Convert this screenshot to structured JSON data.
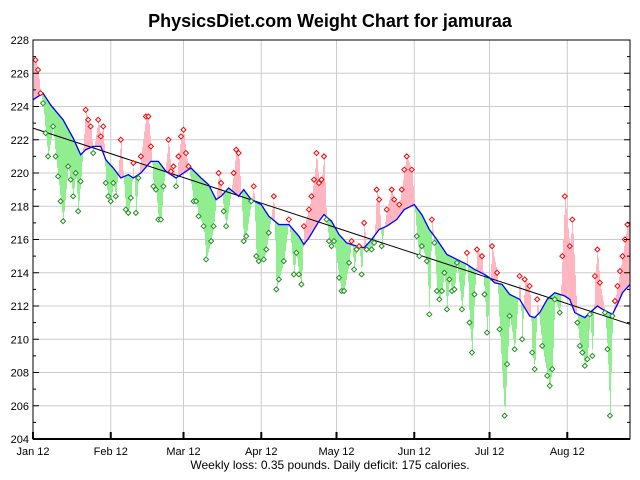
{
  "chart_data": {
    "type": "line",
    "title": "PhysicsDiet.com Weight Chart for jamuraa",
    "footer": "Weekly loss: 0.35 pounds. Daily deficit: 175 calories.",
    "ylim": [
      204,
      228
    ],
    "yticks": [
      "204",
      "206",
      "208",
      "210",
      "212",
      "214",
      "216",
      "218",
      "220",
      "222",
      "224",
      "226",
      "228"
    ],
    "xlim": [
      "Jan 12",
      "Sep 6"
    ],
    "xticks": [
      "Jan 12",
      "Feb 12",
      "Mar 12",
      "Apr 12",
      "May 12",
      "Jun 12",
      "Jul 12",
      "Aug 12"
    ],
    "grid": true,
    "colors": {
      "above_trend": "#ffb6c1",
      "below_trend": "#90ee90",
      "above_marker": "#ff0000",
      "below_marker": "#209020",
      "trend": "#0000ff",
      "regression": "#000000",
      "grid": "#cccccc"
    },
    "regression": [
      [
        "Jan 12",
        222.7
      ],
      [
        "Sep 6",
        210.9
      ]
    ],
    "trend": [
      [
        "Jan 12",
        224.4
      ],
      [
        "Jan 16",
        224.8
      ],
      [
        "Jan 19",
        224.1
      ],
      [
        "Jan 24",
        223.2
      ],
      [
        "Jan 28",
        222.1
      ],
      [
        "Jan 31",
        221.1
      ],
      [
        "Feb 2",
        221.4
      ],
      [
        "Feb 5",
        221.6
      ],
      [
        "Feb 8",
        221.6
      ],
      [
        "Feb 10",
        220.8
      ],
      [
        "Feb 13",
        220.3
      ],
      [
        "Feb 16",
        219.7
      ],
      [
        "Feb 19",
        219.9
      ],
      [
        "Feb 21",
        219.7
      ],
      [
        "Feb 24",
        220.0
      ],
      [
        "Feb 28",
        220.7
      ],
      [
        "Mar 2",
        220.7
      ],
      [
        "Mar 5",
        220.1
      ],
      [
        "Mar 9",
        219.7
      ],
      [
        "Mar 11",
        219.9
      ],
      [
        "Mar 15",
        220.3
      ],
      [
        "Mar 19",
        219.7
      ],
      [
        "Mar 22",
        219.3
      ],
      [
        "Mar 25",
        218.4
      ],
      [
        "Mar 27",
        218.6
      ],
      [
        "Mar 30",
        219.1
      ],
      [
        "Apr 3",
        218.6
      ],
      [
        "Apr 5",
        219.0
      ],
      [
        "Apr 8",
        218.4
      ],
      [
        "Apr 12",
        218.1
      ],
      [
        "Apr 15",
        217.4
      ],
      [
        "Apr 19",
        216.9
      ],
      [
        "Apr 23",
        216.9
      ],
      [
        "Apr 27",
        216.2
      ],
      [
        "Apr 29",
        215.7
      ],
      [
        "May 1",
        216.1
      ],
      [
        "May 5",
        217.1
      ],
      [
        "May 7",
        217.5
      ],
      [
        "May 10",
        217.1
      ],
      [
        "May 13",
        216.3
      ],
      [
        "May 16",
        215.8
      ],
      [
        "May 20",
        215.6
      ],
      [
        "May 23",
        215.5
      ],
      [
        "May 26",
        216.0
      ],
      [
        "May 29",
        216.6
      ],
      [
        "Jun 1",
        216.8
      ],
      [
        "Jun 5",
        217.2
      ],
      [
        "Jun 8",
        217.8
      ],
      [
        "Jun 12",
        218.1
      ],
      [
        "Jun 15",
        217.5
      ],
      [
        "Jun 18",
        216.6
      ],
      [
        "Jun 21",
        216.0
      ],
      [
        "Jun 25",
        215.1
      ],
      [
        "Jun 29",
        214.8
      ],
      [
        "Jul 3",
        214.5
      ],
      [
        "Jul 6",
        214.2
      ],
      [
        "Jul 10",
        213.9
      ],
      [
        "Jul 12",
        213.7
      ],
      [
        "Jul 14",
        213.4
      ],
      [
        "Jul 17",
        213.3
      ],
      [
        "Jul 20",
        212.7
      ],
      [
        "Jul 24",
        212.4
      ],
      [
        "Jul 28",
        211.4
      ],
      [
        "Jul 30",
        211.3
      ],
      [
        "Aug 1",
        211.6
      ],
      [
        "Aug 4",
        212.4
      ],
      [
        "Aug 7",
        212.8
      ],
      [
        "Aug 11",
        212.6
      ],
      [
        "Aug 13",
        212.4
      ],
      [
        "Aug 15",
        211.6
      ],
      [
        "Aug 19",
        211.3
      ],
      [
        "Aug 21",
        211.6
      ],
      [
        "Aug 24",
        212.0
      ],
      [
        "Aug 26",
        211.8
      ],
      [
        "Aug 30",
        211.5
      ],
      [
        "Sep 1",
        212.1
      ],
      [
        "Sep 3",
        212.8
      ],
      [
        "Sep 6",
        213.3
      ]
    ],
    "weights": [
      [
        "Jan 13",
        226.8
      ],
      [
        "Jan 14",
        226.2
      ],
      [
        "Jan 15",
        224.8
      ],
      [
        "Jan 16",
        224.2
      ],
      [
        "Jan 17",
        222.4
      ],
      [
        "Jan 18",
        221.0
      ],
      [
        "Jan 20",
        222.8
      ],
      [
        "Jan 21",
        221.0
      ],
      [
        "Jan 22",
        219.8
      ],
      [
        "Jan 23",
        218.3
      ],
      [
        "Jan 24",
        217.1
      ],
      [
        "Jan 26",
        220.4
      ],
      [
        "Jan 27",
        219.6
      ],
      [
        "Jan 28",
        218.6
      ],
      [
        "Jan 29",
        220.0
      ],
      [
        "Jan 30",
        217.7
      ],
      [
        "Jan 31",
        219.5
      ],
      [
        "Feb 2",
        223.8
      ],
      [
        "Feb 3",
        223.2
      ],
      [
        "Feb 4",
        222.8
      ],
      [
        "Feb 5",
        221.2
      ],
      [
        "Feb 7",
        223.2
      ],
      [
        "Feb 8",
        222.2
      ],
      [
        "Feb 9",
        222.8
      ],
      [
        "Feb 10",
        219.4
      ],
      [
        "Feb 11",
        218.6
      ],
      [
        "Feb 12",
        218.3
      ],
      [
        "Feb 13",
        219.4
      ],
      [
        "Feb 14",
        218.6
      ],
      [
        "Feb 16",
        222.0
      ],
      [
        "Feb 18",
        217.8
      ],
      [
        "Feb 19",
        217.6
      ],
      [
        "Feb 20",
        218.5
      ],
      [
        "Feb 21",
        220.6
      ],
      [
        "Feb 22",
        217.6
      ],
      [
        "Feb 23",
        219.7
      ],
      [
        "Feb 24",
        221.0
      ],
      [
        "Feb 26",
        223.4
      ],
      [
        "Feb 27",
        223.4
      ],
      [
        "Feb 28",
        221.6
      ],
      [
        "Feb 29",
        219.2
      ],
      [
        "Mar 1",
        219.0
      ],
      [
        "Mar 2",
        217.2
      ],
      [
        "Mar 3",
        217.2
      ],
      [
        "Mar 4",
        219.2
      ],
      [
        "Mar 6",
        222.0
      ],
      [
        "Mar 7",
        220.1
      ],
      [
        "Mar 8",
        220.4
      ],
      [
        "Mar 9",
        219.2
      ],
      [
        "Mar 10",
        221.0
      ],
      [
        "Mar 11",
        222.2
      ],
      [
        "Mar 12",
        222.6
      ],
      [
        "Mar 13",
        221.2
      ],
      [
        "Mar 14",
        220.4
      ],
      [
        "Mar 16",
        218.3
      ],
      [
        "Mar 17",
        218.3
      ],
      [
        "Mar 18",
        217.4
      ],
      [
        "Mar 20",
        216.8
      ],
      [
        "Mar 21",
        214.8
      ],
      [
        "Mar 23",
        215.9
      ],
      [
        "Mar 24",
        216.8
      ],
      [
        "Mar 26",
        220.0
      ],
      [
        "Mar 27",
        219.4
      ],
      [
        "Mar 28",
        217.7
      ],
      [
        "Mar 29",
        216.8
      ],
      [
        "Apr 1",
        220.0
      ],
      [
        "Apr 2",
        221.4
      ],
      [
        "Apr 3",
        221.2
      ],
      [
        "Apr 5",
        215.9
      ],
      [
        "Apr 6",
        216.2
      ],
      [
        "Apr 8",
        218.3
      ],
      [
        "Apr 9",
        219.2
      ],
      [
        "Apr 10",
        215.0
      ],
      [
        "Apr 11",
        214.7
      ],
      [
        "Apr 13",
        214.8
      ],
      [
        "Apr 14",
        215.4
      ],
      [
        "Apr 15",
        216.4
      ],
      [
        "Apr 17",
        218.6
      ],
      [
        "Apr 18",
        213.0
      ],
      [
        "Apr 19",
        213.6
      ],
      [
        "Apr 21",
        214.7
      ],
      [
        "Apr 23",
        217.2
      ],
      [
        "Apr 25",
        213.9
      ],
      [
        "Apr 26",
        215.2
      ],
      [
        "Apr 27",
        213.9
      ],
      [
        "Apr 28",
        213.3
      ],
      [
        "Apr 29",
        216.8
      ],
      [
        "May 1",
        217.8
      ],
      [
        "May 2",
        218.6
      ],
      [
        "May 3",
        219.6
      ],
      [
        "May 4",
        221.2
      ],
      [
        "May 5",
        219.4
      ],
      [
        "May 6",
        219.6
      ],
      [
        "May 7",
        221.0
      ],
      [
        "May 8",
        217.2
      ],
      [
        "May 9",
        215.9
      ],
      [
        "May 10",
        215.6
      ],
      [
        "May 11",
        215.9
      ],
      [
        "May 13",
        213.7
      ],
      [
        "May 14",
        212.9
      ],
      [
        "May 15",
        212.9
      ],
      [
        "May 17",
        214.6
      ],
      [
        "May 18",
        215.9
      ],
      [
        "May 19",
        214.2
      ],
      [
        "May 20",
        215.4
      ],
      [
        "May 21",
        215.6
      ],
      [
        "May 22",
        213.9
      ],
      [
        "May 23",
        217.0
      ],
      [
        "May 24",
        215.4
      ],
      [
        "May 26",
        215.4
      ],
      [
        "May 27",
        215.8
      ],
      [
        "May 28",
        219.0
      ],
      [
        "May 29",
        218.4
      ],
      [
        "May 30",
        215.6
      ],
      [
        "Jun 1",
        217.8
      ],
      [
        "Jun 3",
        219.0
      ],
      [
        "Jun 4",
        218.4
      ],
      [
        "Jun 6",
        218.1
      ],
      [
        "Jun 7",
        219.0
      ],
      [
        "Jun 8",
        220.2
      ],
      [
        "Jun 9",
        221.0
      ],
      [
        "Jun 11",
        220.2
      ],
      [
        "Jun 13",
        216.2
      ],
      [
        "Jun 14",
        215.0
      ],
      [
        "Jun 15",
        215.6
      ],
      [
        "Jun 17",
        214.7
      ],
      [
        "Jun 18",
        211.5
      ],
      [
        "Jun 19",
        217.2
      ],
      [
        "Jun 20",
        215.8
      ],
      [
        "Jun 21",
        212.9
      ],
      [
        "Jun 22",
        212.4
      ],
      [
        "Jun 23",
        212.9
      ],
      [
        "Jun 24",
        214.0
      ],
      [
        "Jun 25",
        211.8
      ],
      [
        "Jun 26",
        213.6
      ],
      [
        "Jun 27",
        212.9
      ],
      [
        "Jun 28",
        213.0
      ],
      [
        "Jun 29",
        214.6
      ],
      [
        "Jul 1",
        211.8
      ],
      [
        "Jul 3",
        215.2
      ],
      [
        "Jul 4",
        211.0
      ],
      [
        "Jul 5",
        209.2
      ],
      [
        "Jul 6",
        212.7
      ],
      [
        "Jul 7",
        215.4
      ],
      [
        "Jul 9",
        215.0
      ],
      [
        "Jul 10",
        212.7
      ],
      [
        "Jul 11",
        210.4
      ],
      [
        "Jul 13",
        215.6
      ],
      [
        "Jul 15",
        214.0
      ],
      [
        "Jul 16",
        210.6
      ],
      [
        "Jul 18",
        205.4
      ],
      [
        "Jul 19",
        208.5
      ],
      [
        "Jul 20",
        211.4
      ],
      [
        "Jul 22",
        209.4
      ],
      [
        "Jul 24",
        213.8
      ],
      [
        "Jul 25",
        210.0
      ],
      [
        "Jul 26",
        213.6
      ],
      [
        "Jul 28",
        213.2
      ],
      [
        "Jul 29",
        209.2
      ],
      [
        "Jul 30",
        208.2
      ],
      [
        "Jul 31",
        212.4
      ],
      [
        "Aug 2",
        209.6
      ],
      [
        "Aug 4",
        207.8
      ],
      [
        "Aug 5",
        207.2
      ],
      [
        "Aug 6",
        208.2
      ],
      [
        "Aug 7",
        212.4
      ],
      [
        "Aug 9",
        211.6
      ],
      [
        "Aug 10",
        215.0
      ],
      [
        "Aug 11",
        218.6
      ],
      [
        "Aug 13",
        215.6
      ],
      [
        "Aug 14",
        217.2
      ],
      [
        "Aug 16",
        211.0
      ],
      [
        "Aug 17",
        209.6
      ],
      [
        "Aug 18",
        209.2
      ],
      [
        "Aug 19",
        208.4
      ],
      [
        "Aug 20",
        208.8
      ],
      [
        "Aug 21",
        211.5
      ],
      [
        "Aug 22",
        209.0
      ],
      [
        "Aug 23",
        213.8
      ],
      [
        "Aug 24",
        215.4
      ],
      [
        "Aug 25",
        213.4
      ],
      [
        "Aug 27",
        211.6
      ],
      [
        "Aug 28",
        209.4
      ],
      [
        "Aug 29",
        205.4
      ],
      [
        "Aug 30",
        211.4
      ],
      [
        "Aug 31",
        212.3
      ],
      [
        "Sep 1",
        213.2
      ],
      [
        "Sep 2",
        214.1
      ],
      [
        "Sep 3",
        215.0
      ],
      [
        "Sep 4",
        216.0
      ],
      [
        "Sep 5",
        216.9
      ]
    ]
  }
}
